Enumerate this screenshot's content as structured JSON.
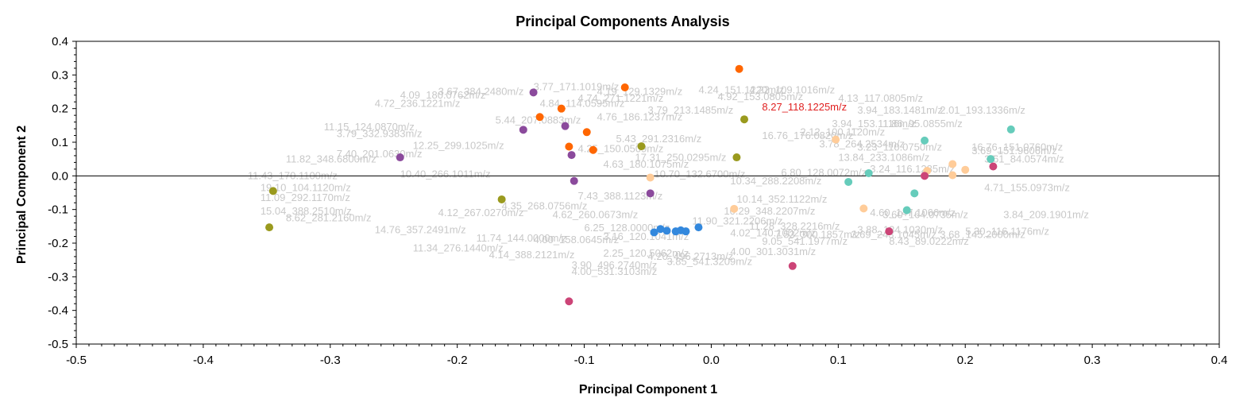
{
  "chart_data": {
    "type": "scatter",
    "title": "Principal Components Analysis",
    "xlabel": "Principal Component 1",
    "ylabel": "Principal Component 2",
    "xlim": [
      -0.5,
      0.4
    ],
    "ylim": [
      -0.5,
      0.4
    ],
    "x_ticks": [
      "-0.5",
      "-0.4",
      "-0.3",
      "-0.2",
      "-0.1",
      "0.0",
      "0.1",
      "0.2",
      "0.3",
      "0.4"
    ],
    "y_ticks": [
      "0.4",
      "0.3",
      "0.2",
      "0.1",
      "0.0",
      "-0.1",
      "-0.2",
      "-0.3",
      "-0.4",
      "-0.5"
    ],
    "grid": false,
    "zero_line": true,
    "highlight_label": {
      "text": "8.27_118.1225m/z",
      "x": 0.04,
      "y": 0.195,
      "color": "#e02020"
    },
    "loading_labels": [
      {
        "text": "3.67_384.2480m/z",
        "x": -0.215,
        "y": 0.24
      },
      {
        "text": "3.77_171.1019m/z",
        "x": -0.14,
        "y": 0.255
      },
      {
        "text": "4.19_129.1329m/z",
        "x": -0.09,
        "y": 0.24
      },
      {
        "text": "4.24_151.1220m/z",
        "x": -0.01,
        "y": 0.245
      },
      {
        "text": "4.22_109.1016m/z",
        "x": 0.03,
        "y": 0.245
      },
      {
        "text": "4.09_180.0762m/z",
        "x": -0.245,
        "y": 0.23
      },
      {
        "text": "4.74_271.1221m/z",
        "x": -0.105,
        "y": 0.22
      },
      {
        "text": "4.92_153.0805m/z",
        "x": 0.005,
        "y": 0.225
      },
      {
        "text": "4.13_117.0805m/z",
        "x": 0.1,
        "y": 0.22
      },
      {
        "text": "4.72_236.1221m/z",
        "x": -0.265,
        "y": 0.205
      },
      {
        "text": "4.84_114.0595m/z",
        "x": -0.135,
        "y": 0.205
      },
      {
        "text": "3.79_213.1485m/z",
        "x": -0.05,
        "y": 0.185
      },
      {
        "text": "3.94_183.1481m/z",
        "x": 0.115,
        "y": 0.185
      },
      {
        "text": "2.01_193.1336m/z",
        "x": 0.18,
        "y": 0.185
      },
      {
        "text": "5.44_207.0883m/z",
        "x": -0.17,
        "y": 0.155
      },
      {
        "text": "4.76_186.1237m/z",
        "x": -0.09,
        "y": 0.165
      },
      {
        "text": "3.79_332.9383m/z",
        "x": -0.295,
        "y": 0.115
      },
      {
        "text": "11.15_124.0870m/z",
        "x": -0.305,
        "y": 0.135
      },
      {
        "text": "16.76_176.0820m/z",
        "x": 0.04,
        "y": 0.11
      },
      {
        "text": "3.94_153.1116m/z",
        "x": 0.095,
        "y": 0.145
      },
      {
        "text": "1.86_95.0855m/z",
        "x": 0.135,
        "y": 0.145
      },
      {
        "text": "2.12_100.1120m/z",
        "x": 0.07,
        "y": 0.12
      },
      {
        "text": "5.43_291.2316m/z",
        "x": -0.075,
        "y": 0.1
      },
      {
        "text": "3.78_264.2534m/z",
        "x": 0.085,
        "y": 0.085
      },
      {
        "text": "3.23_110.0750m/z",
        "x": 0.115,
        "y": 0.075
      },
      {
        "text": "16.76_151.0760m/z",
        "x": 0.205,
        "y": 0.075
      },
      {
        "text": "3.69_151.9606m/z",
        "x": 0.205,
        "y": 0.065
      },
      {
        "text": "7.40_201.0630m/z",
        "x": -0.295,
        "y": 0.055
      },
      {
        "text": "4.25_150.0509m/z",
        "x": -0.105,
        "y": 0.07
      },
      {
        "text": "12.25_299.1025m/z",
        "x": -0.235,
        "y": 0.08
      },
      {
        "text": "11.82_348.6800m/z",
        "x": -0.335,
        "y": 0.04
      },
      {
        "text": "13.84_233.1086m/z",
        "x": 0.1,
        "y": 0.045
      },
      {
        "text": "17.31_250.0295m/z",
        "x": -0.06,
        "y": 0.045
      },
      {
        "text": "3.61_84.0574m/z",
        "x": 0.215,
        "y": 0.04
      },
      {
        "text": "4.63_180.1075m/z",
        "x": -0.085,
        "y": 0.025
      },
      {
        "text": "6.80_128.0072m/z",
        "x": 0.055,
        "y": 0.0
      },
      {
        "text": "3.24_116.1285m/z",
        "x": 0.125,
        "y": 0.01
      },
      {
        "text": "11.43_170.1100m/z",
        "x": -0.365,
        "y": -0.01
      },
      {
        "text": "10.40_266.1011m/z",
        "x": -0.245,
        "y": -0.005
      },
      {
        "text": "10.70_132.6700m/z",
        "x": -0.045,
        "y": -0.005
      },
      {
        "text": "10.34_288.2208m/z",
        "x": 0.015,
        "y": -0.025
      },
      {
        "text": "19.10_104.1120m/z",
        "x": -0.355,
        "y": -0.045
      },
      {
        "text": "4.71_155.0973m/z",
        "x": 0.215,
        "y": -0.045
      },
      {
        "text": "11.09_292.1170m/z",
        "x": -0.355,
        "y": -0.075
      },
      {
        "text": "10.14_352.1122m/z",
        "x": 0.02,
        "y": -0.08
      },
      {
        "text": "7.43_388.1123m/z",
        "x": -0.105,
        "y": -0.07
      },
      {
        "text": "4.35_268.0756m/z",
        "x": -0.165,
        "y": -0.1
      },
      {
        "text": "15.04_388.2510m/z",
        "x": -0.355,
        "y": -0.115
      },
      {
        "text": "10.29_348.2207m/z",
        "x": 0.01,
        "y": -0.115
      },
      {
        "text": "4.60_147.1066m/z",
        "x": 0.125,
        "y": -0.12
      },
      {
        "text": "8.62_281.2160m/z",
        "x": -0.335,
        "y": -0.135
      },
      {
        "text": "4.12_267.0270m/z",
        "x": -0.215,
        "y": -0.12
      },
      {
        "text": "4.62_260.0673m/z",
        "x": -0.125,
        "y": -0.125
      },
      {
        "text": "3.60_164.0735m/z",
        "x": 0.135,
        "y": -0.125
      },
      {
        "text": "3.84_209.1901m/z",
        "x": 0.23,
        "y": -0.125
      },
      {
        "text": "11.90_321.2206m/z",
        "x": -0.015,
        "y": -0.145
      },
      {
        "text": "11.28_328.2216m/z",
        "x": 0.03,
        "y": -0.16
      },
      {
        "text": "14.76_357.2491m/z",
        "x": -0.265,
        "y": -0.17
      },
      {
        "text": "6.25_128.0000m/z",
        "x": -0.1,
        "y": -0.165
      },
      {
        "text": "3.88_134.1030m/z",
        "x": 0.115,
        "y": -0.17
      },
      {
        "text": "5.30_116.1176m/z",
        "x": 0.2,
        "y": -0.175
      },
      {
        "text": "11.74_144.0000m/z",
        "x": -0.185,
        "y": -0.195
      },
      {
        "text": "3.16_120.1041m/z",
        "x": -0.085,
        "y": -0.19
      },
      {
        "text": "4.02_140.1002m/z",
        "x": 0.015,
        "y": -0.18
      },
      {
        "text": "7.53_300.1857m/z",
        "x": 0.05,
        "y": -0.185
      },
      {
        "text": "3.69_243.1045m/z",
        "x": 0.11,
        "y": -0.185
      },
      {
        "text": "3.68_145.2000m/z",
        "x": 0.18,
        "y": -0.185
      },
      {
        "text": "4.00_158.0645m/z",
        "x": -0.14,
        "y": -0.2
      },
      {
        "text": "9.05_541.1977m/z",
        "x": 0.04,
        "y": -0.205
      },
      {
        "text": "8.43_89.0222m/z",
        "x": 0.14,
        "y": -0.205
      },
      {
        "text": "11.34_276.1440m/z",
        "x": -0.235,
        "y": -0.225
      },
      {
        "text": "4.14_388.2121m/z",
        "x": -0.175,
        "y": -0.245
      },
      {
        "text": "2.25_120.5062m/z",
        "x": -0.085,
        "y": -0.24
      },
      {
        "text": "4.20_496.2713m/z",
        "x": -0.05,
        "y": -0.25
      },
      {
        "text": "3.85_541.3209m/z",
        "x": -0.035,
        "y": -0.265
      },
      {
        "text": "4.00_301.3031m/z",
        "x": 0.015,
        "y": -0.235
      },
      {
        "text": "3.90_496.2740m/z",
        "x": -0.11,
        "y": -0.275
      },
      {
        "text": "4.00_531.3103m/z",
        "x": -0.11,
        "y": -0.295
      }
    ],
    "series": [
      {
        "color": "#ff6600",
        "points": [
          [
            0.022,
            0.318
          ],
          [
            -0.068,
            0.263
          ],
          [
            -0.118,
            0.2
          ],
          [
            -0.135,
            0.175
          ],
          [
            -0.098,
            0.13
          ],
          [
            -0.112,
            0.087
          ],
          [
            -0.093,
            0.077
          ]
        ]
      },
      {
        "color": "#8b4a9c",
        "points": [
          [
            -0.14,
            0.248
          ],
          [
            -0.115,
            0.148
          ],
          [
            -0.148,
            0.137
          ],
          [
            -0.11,
            0.062
          ],
          [
            -0.245,
            0.055
          ],
          [
            -0.108,
            -0.015
          ],
          [
            -0.048,
            -0.052
          ]
        ]
      },
      {
        "color": "#9a9a1e",
        "points": [
          [
            0.026,
            0.168
          ],
          [
            -0.055,
            0.088
          ],
          [
            0.02,
            0.055
          ],
          [
            -0.345,
            -0.045
          ],
          [
            -0.165,
            -0.07
          ],
          [
            -0.348,
            -0.153
          ]
        ]
      },
      {
        "color": "#ffcc99",
        "points": [
          [
            0.098,
            0.108
          ],
          [
            0.19,
            0.035
          ],
          [
            0.17,
            0.015
          ],
          [
            0.2,
            0.018
          ],
          [
            0.19,
            0.002
          ],
          [
            -0.048,
            -0.005
          ],
          [
            0.12,
            -0.097
          ],
          [
            0.018,
            -0.098
          ]
        ]
      },
      {
        "color": "#66ccbb",
        "points": [
          [
            0.236,
            0.138
          ],
          [
            0.168,
            0.105
          ],
          [
            0.22,
            0.05
          ],
          [
            0.124,
            0.008
          ],
          [
            0.108,
            -0.018
          ],
          [
            0.16,
            -0.052
          ],
          [
            0.154,
            -0.102
          ]
        ]
      },
      {
        "color": "#cc4477",
        "points": [
          [
            0.222,
            0.028
          ],
          [
            0.168,
            0.0
          ],
          [
            0.14,
            -0.165
          ],
          [
            0.064,
            -0.268
          ],
          [
            -0.112,
            -0.373
          ]
        ]
      },
      {
        "color": "#3388dd",
        "points": [
          [
            -0.045,
            -0.168
          ],
          [
            -0.04,
            -0.158
          ],
          [
            -0.035,
            -0.163
          ],
          [
            -0.028,
            -0.165
          ],
          [
            -0.024,
            -0.162
          ],
          [
            -0.02,
            -0.165
          ],
          [
            -0.01,
            -0.153
          ]
        ]
      }
    ]
  }
}
